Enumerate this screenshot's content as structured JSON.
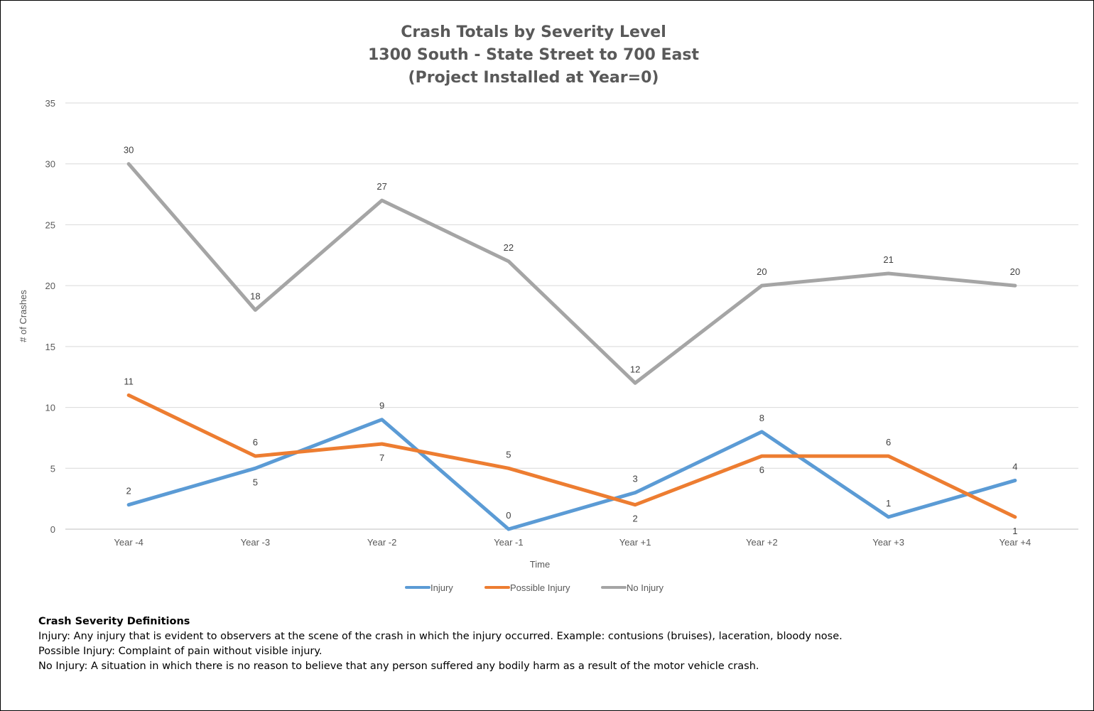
{
  "chart_data": {
    "type": "line",
    "title": [
      "Crash Totals by Severity Level",
      "1300 South - State Street to 700 East",
      "(Project Installed at Year=0)"
    ],
    "xlabel": "Time",
    "ylabel": "# of Crashes",
    "ylim": [
      0,
      35
    ],
    "yticks": [
      0,
      5,
      10,
      15,
      20,
      25,
      30,
      35
    ],
    "grid": true,
    "legend_position": "bottom",
    "categories": [
      "Year -4",
      "Year -3",
      "Year -2",
      "Year -1",
      "Year +1",
      "Year +2",
      "Year +3",
      "Year +4"
    ],
    "series": [
      {
        "name": "Injury",
        "color": "#5b9bd5",
        "values": [
          2,
          5,
          9,
          0,
          3,
          8,
          1,
          4
        ]
      },
      {
        "name": "Possible Injury",
        "color": "#ed7d31",
        "values": [
          11,
          6,
          7,
          5,
          2,
          6,
          6,
          1
        ]
      },
      {
        "name": "No Injury",
        "color": "#a5a5a5",
        "values": [
          30,
          18,
          27,
          22,
          12,
          20,
          21,
          20
        ]
      }
    ]
  },
  "definitions": {
    "heading": "Crash Severity Definitions",
    "lines": [
      "Injury: Any injury that is evident to observers at the scene of the crash in which the injury occurred. Example: contusions (bruises), laceration, bloody nose.",
      "Possible Injury: Complaint of pain without visible injury.",
      "No Injury: A situation in which there is no reason to believe that any person suffered any bodily harm as a result of the motor vehicle crash."
    ]
  }
}
